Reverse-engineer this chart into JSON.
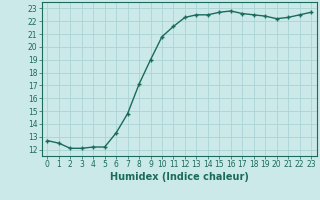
{
  "x": [
    0,
    1,
    2,
    3,
    4,
    5,
    6,
    7,
    8,
    9,
    10,
    11,
    12,
    13,
    14,
    15,
    16,
    17,
    18,
    19,
    20,
    21,
    22,
    23
  ],
  "y": [
    12.7,
    12.5,
    12.1,
    12.1,
    12.2,
    12.2,
    13.3,
    14.8,
    17.1,
    19.0,
    20.8,
    21.6,
    22.3,
    22.5,
    22.5,
    22.7,
    22.8,
    22.6,
    22.5,
    22.4,
    22.2,
    22.3,
    22.5,
    22.7
  ],
  "line_color": "#1a6b5a",
  "marker": "+",
  "markersize": 3.5,
  "linewidth": 1.0,
  "xlabel": "Humidex (Indice chaleur)",
  "bg_color": "#cce9e9",
  "grid_color": "#aad4d4",
  "ylim_min": 11.5,
  "ylim_max": 23.5,
  "xlim_min": -0.5,
  "xlim_max": 23.5,
  "yticks": [
    12,
    13,
    14,
    15,
    16,
    17,
    18,
    19,
    20,
    21,
    22,
    23
  ],
  "xticks": [
    0,
    1,
    2,
    3,
    4,
    5,
    6,
    7,
    8,
    9,
    10,
    11,
    12,
    13,
    14,
    15,
    16,
    17,
    18,
    19,
    20,
    21,
    22,
    23
  ],
  "tick_color": "#1a6b5a",
  "tick_fontsize": 5.5,
  "xlabel_fontsize": 7.0,
  "xlabel_color": "#1a6b5a"
}
